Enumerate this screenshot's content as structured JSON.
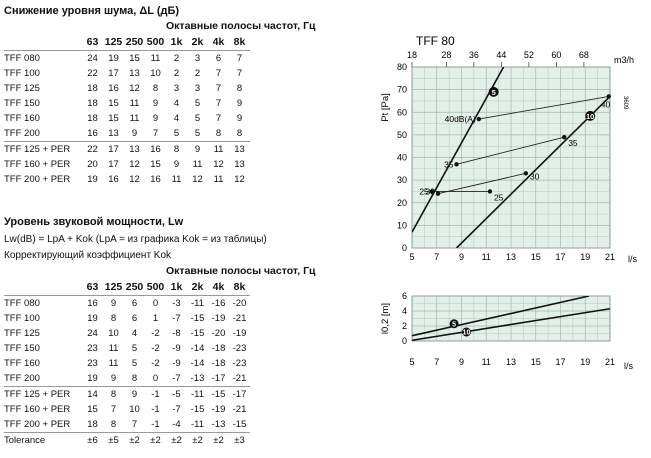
{
  "noise": {
    "title": "Снижение уровня шума, ΔL (дБ)",
    "band_title": "Октавные полосы частот, Гц",
    "bands": [
      "63",
      "125",
      "250",
      "500",
      "1k",
      "2k",
      "4k",
      "8k"
    ],
    "rows": [
      {
        "name": "TFF 080",
        "values": [
          "24",
          "19",
          "15",
          "11",
          "2",
          "3",
          "6",
          "7"
        ]
      },
      {
        "name": "TFF 100",
        "values": [
          "22",
          "17",
          "13",
          "10",
          "2",
          "2",
          "7",
          "7"
        ]
      },
      {
        "name": "TFF 125",
        "values": [
          "18",
          "16",
          "12",
          "8",
          "3",
          "3",
          "7",
          "8"
        ]
      },
      {
        "name": "TFF 150",
        "values": [
          "18",
          "15",
          "11",
          "9",
          "4",
          "5",
          "7",
          "9"
        ]
      },
      {
        "name": "TFF 160",
        "values": [
          "18",
          "15",
          "11",
          "9",
          "4",
          "5",
          "7",
          "9"
        ]
      },
      {
        "name": "TFF 200",
        "values": [
          "16",
          "13",
          "9",
          "7",
          "5",
          "5",
          "8",
          "8"
        ]
      },
      {
        "name": "TFF 125 + PER",
        "values": [
          "22",
          "17",
          "13",
          "16",
          "8",
          "9",
          "11",
          "13"
        ]
      },
      {
        "name": "TFF 160 + PER",
        "values": [
          "20",
          "17",
          "12",
          "15",
          "9",
          "11",
          "12",
          "13"
        ]
      },
      {
        "name": "TFF 200 + PER",
        "values": [
          "19",
          "16",
          "12",
          "16",
          "11",
          "12",
          "11",
          "12"
        ]
      }
    ]
  },
  "power": {
    "title": "Уровень звуковой мощности, Lw",
    "formula": "Lw(dB) = LpA + Kok (LpA = из графика Kok = из таблицы)",
    "correction": "Корректирующий коэффициент Kok",
    "band_title": "Октавные полосы частот, Гц",
    "bands": [
      "63",
      "125",
      "250",
      "500",
      "1k",
      "2k",
      "4k",
      "8k"
    ],
    "rows": [
      {
        "name": "TFF 080",
        "values": [
          "16",
          "9",
          "6",
          "0",
          "-3",
          "-11",
          "-16",
          "-20"
        ]
      },
      {
        "name": "TFF 100",
        "values": [
          "19",
          "8",
          "6",
          "1",
          "-7",
          "-15",
          "-19",
          "-21"
        ]
      },
      {
        "name": "TFF 125",
        "values": [
          "24",
          "10",
          "4",
          "-2",
          "-8",
          "-15",
          "-20",
          "-19"
        ]
      },
      {
        "name": "TFF 150",
        "values": [
          "23",
          "11",
          "5",
          "-2",
          "-9",
          "-14",
          "-18",
          "-23"
        ]
      },
      {
        "name": "TFF 160",
        "values": [
          "23",
          "11",
          "5",
          "-2",
          "-9",
          "-14",
          "-18",
          "-23"
        ]
      },
      {
        "name": "TFF 200",
        "values": [
          "19",
          "9",
          "8",
          "0",
          "-7",
          "-13",
          "-17",
          "-21"
        ]
      },
      {
        "name": "TFF 125 + PER",
        "values": [
          "14",
          "8",
          "9",
          "-1",
          "-5",
          "-11",
          "-15",
          "-17"
        ]
      },
      {
        "name": "TFF 160 + PER",
        "values": [
          "15",
          "7",
          "10",
          "-1",
          "-7",
          "-15",
          "-19",
          "-21"
        ]
      },
      {
        "name": "TFF 200 + PER",
        "values": [
          "18",
          "8",
          "7",
          "-1",
          "-4",
          "-11",
          "-13",
          "-15"
        ]
      },
      {
        "name": "Tolerance",
        "values": [
          "±6",
          "±5",
          "±2",
          "±2",
          "±2",
          "±2",
          "±2",
          "±3"
        ]
      }
    ]
  },
  "chart_data": [
    {
      "type": "line",
      "title": "TFF 80",
      "xlabel": "l/s",
      "x2label": "m3/h",
      "ylabel": "Pt [Pa]",
      "xlim": [
        5,
        21
      ],
      "ylim": [
        0,
        80
      ],
      "x_ticks": [
        "5",
        "7",
        "9",
        "11",
        "13",
        "15",
        "17",
        "19",
        "21"
      ],
      "x2_ticks": [
        "18",
        "28",
        "36",
        "44",
        "52",
        "60",
        "68"
      ],
      "y_ticks": [
        "0",
        "10",
        "20",
        "30",
        "40",
        "50",
        "60",
        "70",
        "80"
      ],
      "side_code": "3609",
      "grid": true,
      "series": [
        {
          "name": "5",
          "points": [
            [
              5,
              7
            ],
            [
              12.4,
              80
            ]
          ]
        },
        {
          "name": "10",
          "points": [
            [
              8.6,
              0
            ],
            [
              21,
              67
            ]
          ]
        }
      ],
      "sound_lines": [
        {
          "label": "25",
          "points": [
            [
              6.6,
              25
            ],
            [
              11.3,
              25
            ]
          ]
        },
        {
          "label": "30",
          "points": [
            [
              7.1,
              24
            ],
            [
              14.2,
              33
            ]
          ]
        },
        {
          "label": "35",
          "points": [
            [
              8.6,
              37
            ],
            [
              17.3,
              49
            ]
          ]
        },
        {
          "label": "40",
          "points": [
            [
              10.4,
              57
            ],
            [
              20.9,
              67
            ]
          ]
        }
      ],
      "annotations": [
        "40dB(A)",
        "35",
        "30",
        "25",
        "40",
        "35",
        "30",
        "25"
      ]
    },
    {
      "type": "line",
      "xlabel": "l/s",
      "ylabel": "l0,2 [m]",
      "xlim": [
        5,
        21
      ],
      "ylim": [
        0,
        6
      ],
      "x_ticks": [
        "5",
        "7",
        "9",
        "11",
        "13",
        "15",
        "17",
        "19",
        "21"
      ],
      "y_ticks": [
        "0",
        "2",
        "4",
        "6"
      ],
      "grid": true,
      "series": [
        {
          "name": "5",
          "points": [
            [
              5,
              0.7
            ],
            [
              19.3,
              6
            ]
          ]
        },
        {
          "name": "10",
          "points": [
            [
              5,
              0.1
            ],
            [
              21,
              4.3
            ]
          ]
        }
      ]
    }
  ]
}
